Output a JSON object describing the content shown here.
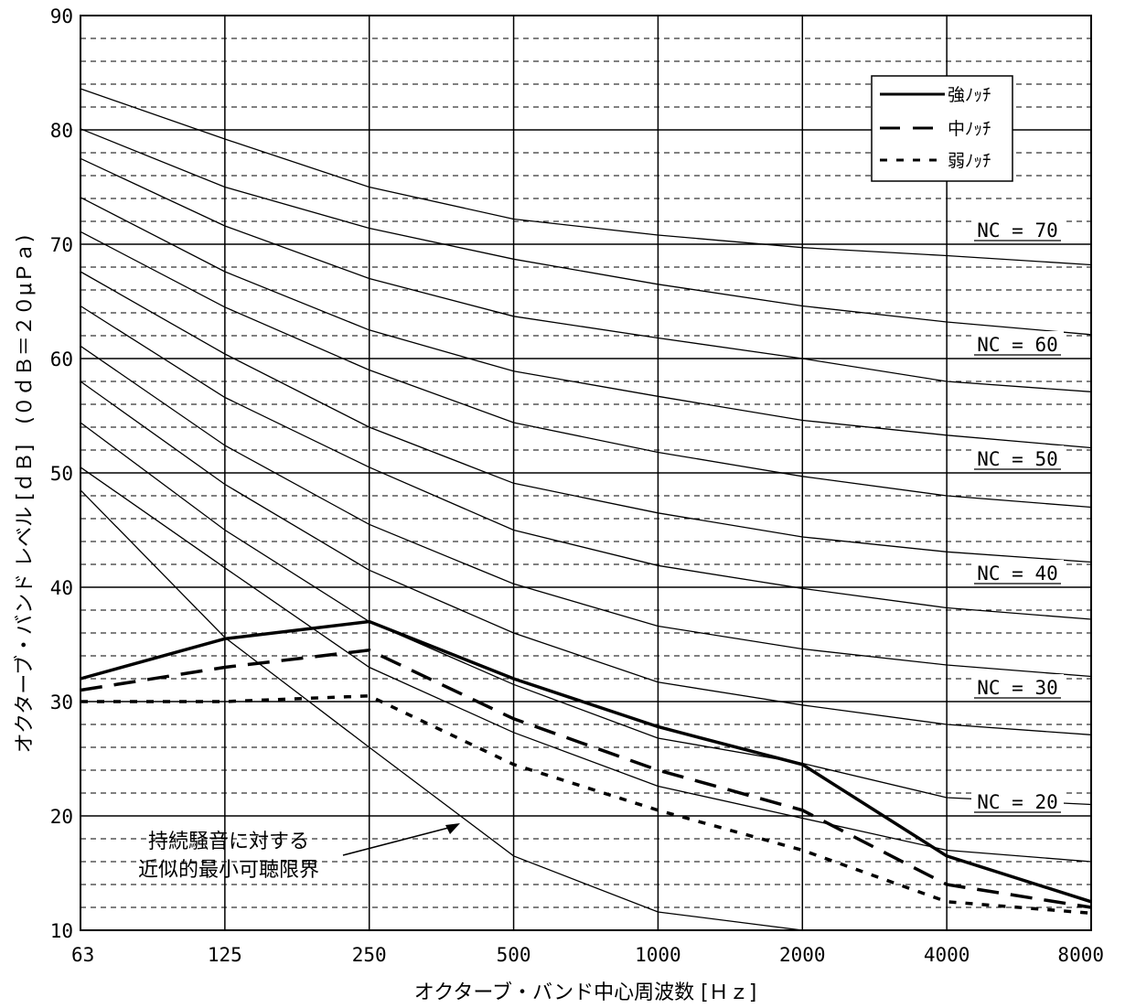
{
  "chart_data": {
    "type": "line",
    "xlabel": "オクターブ・バンド中心周波数 [Ｈｚ]",
    "ylabel": "オクターブ・バンド レベル [ｄＢ]　(０ｄＢ＝２０μＰａ)",
    "x_categories": [
      "63",
      "125",
      "250",
      "500",
      "1000",
      "2000",
      "4000",
      "8000"
    ],
    "ylim": [
      10,
      90
    ],
    "y_ticks": [
      "10",
      "20",
      "30",
      "40",
      "50",
      "60",
      "70",
      "80",
      "90"
    ],
    "grid": {
      "major_y_step": 10,
      "minor_y_step": 2,
      "vertical_lines": true,
      "minor_style": "dashed"
    },
    "legend": {
      "position": "top-right",
      "entries": [
        {
          "label": "強ﾉｯﾁ",
          "style": "solid"
        },
        {
          "label": "中ﾉｯﾁ",
          "style": "long-dash"
        },
        {
          "label": "弱ﾉｯﾁ",
          "style": "short-dash"
        }
      ]
    },
    "nc_labels": [
      {
        "text": "NC = 70",
        "value": 70
      },
      {
        "text": "NC = 60",
        "value": 60
      },
      {
        "text": "NC = 50",
        "value": 50
      },
      {
        "text": "NC = 40",
        "value": 40
      },
      {
        "text": "NC = 30",
        "value": 30
      },
      {
        "text": "NC = 20",
        "value": 20
      }
    ],
    "nc_curves": [
      {
        "values": [
          83.6,
          79.2,
          75.0,
          72.2,
          70.8,
          69.7,
          69.0,
          68.2
        ]
      },
      {
        "values": [
          80.1,
          75.0,
          71.4,
          68.7,
          66.5,
          64.6,
          63.2,
          62.1
        ]
      },
      {
        "values": [
          77.5,
          71.6,
          67.0,
          63.7,
          61.8,
          60.0,
          58.0,
          57.1
        ]
      },
      {
        "values": [
          74.1,
          67.6,
          62.5,
          58.9,
          56.7,
          54.6,
          53.3,
          52.2
        ]
      },
      {
        "values": [
          71.1,
          64.5,
          59.0,
          54.4,
          51.8,
          49.7,
          48.0,
          47.0
        ]
      },
      {
        "values": [
          67.6,
          60.4,
          54.0,
          49.1,
          46.5,
          44.4,
          43.1,
          42.2
        ]
      },
      {
        "values": [
          64.6,
          56.6,
          50.5,
          45.0,
          41.9,
          39.9,
          38.2,
          37.2
        ]
      },
      {
        "values": [
          61.1,
          52.4,
          45.5,
          40.3,
          36.6,
          34.6,
          33.2,
          32.2
        ]
      },
      {
        "values": [
          58.0,
          49.0,
          41.5,
          36.0,
          31.7,
          29.7,
          28.0,
          27.1
        ]
      },
      {
        "values": [
          54.4,
          45.0,
          37.0,
          31.5,
          26.8,
          24.6,
          21.6,
          21.0
        ]
      },
      {
        "values": [
          50.5,
          41.7,
          33.0,
          27.3,
          22.6,
          19.8,
          17.0,
          16.0
        ]
      },
      {
        "values": [
          48.5,
          35.6,
          26.0,
          16.5,
          11.6,
          10.0,
          null,
          null
        ]
      }
    ],
    "series": [
      {
        "name": "強ﾉｯﾁ",
        "style": "solid",
        "values": [
          32.0,
          35.5,
          37.0,
          32.0,
          27.8,
          24.5,
          16.5,
          12.5
        ]
      },
      {
        "name": "中ﾉｯﾁ",
        "style": "long-dash",
        "values": [
          31.0,
          33.0,
          34.5,
          28.5,
          24.0,
          20.5,
          14.0,
          12.0
        ]
      },
      {
        "name": "弱ﾉｯﾁ",
        "style": "short-dash",
        "values": [
          30.0,
          30.0,
          30.5,
          24.5,
          20.5,
          17.0,
          12.5,
          11.5
        ]
      }
    ],
    "annotation": {
      "lines": [
        "持続騒音に対する",
        "近似的最小可聴限界"
      ],
      "points_to_curve_index": 11
    }
  }
}
